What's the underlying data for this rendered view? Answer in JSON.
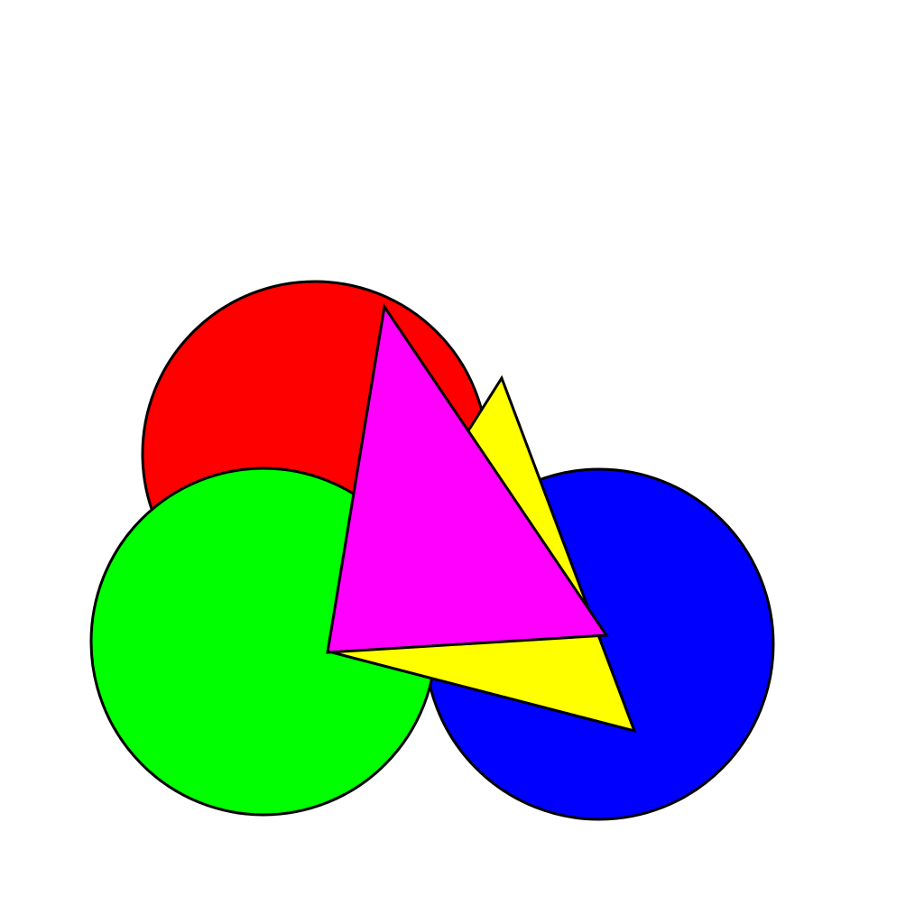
{
  "colors": {
    "background": "#ffffff",
    "outline": "#000000",
    "red": "#ff0000",
    "green": "#00ff00",
    "blue": "#0000ff",
    "yellow": "#ffff00",
    "magenta": "#ff00ff"
  },
  "shapes": [
    {
      "name": "red-circle",
      "type": "circle",
      "color": "#ff0000"
    },
    {
      "name": "blue-circle",
      "type": "circle",
      "color": "#0000ff"
    },
    {
      "name": "green-circle",
      "type": "circle",
      "color": "#00ff00"
    },
    {
      "name": "yellow-triangle",
      "type": "triangle",
      "color": "#ffff00"
    },
    {
      "name": "magenta-triangle",
      "type": "triangle",
      "color": "#ff00ff"
    }
  ]
}
